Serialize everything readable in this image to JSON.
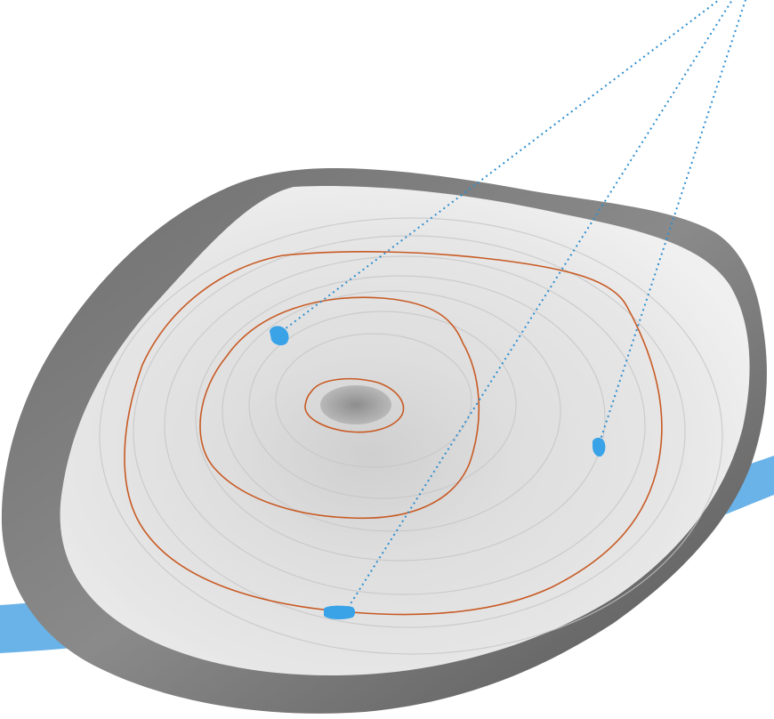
{
  "colors": {
    "background": "#ffffff",
    "accent_blue": "#3aa3e8",
    "river_blue": "#6ab3e8",
    "ring_line": "#c85a24",
    "bark_dark": "#5a5a5a",
    "bark_mid": "#7c7c7c",
    "wood_light": "#dcdcdc",
    "wood_pale": "#ececec",
    "pith": "#8a8a8a"
  },
  "icons": {
    "sample_marker": "blue-blob",
    "pointer_line": "dotted-line"
  },
  "rings": {
    "highlighted_count": 3
  },
  "samples": {
    "count": 3
  }
}
